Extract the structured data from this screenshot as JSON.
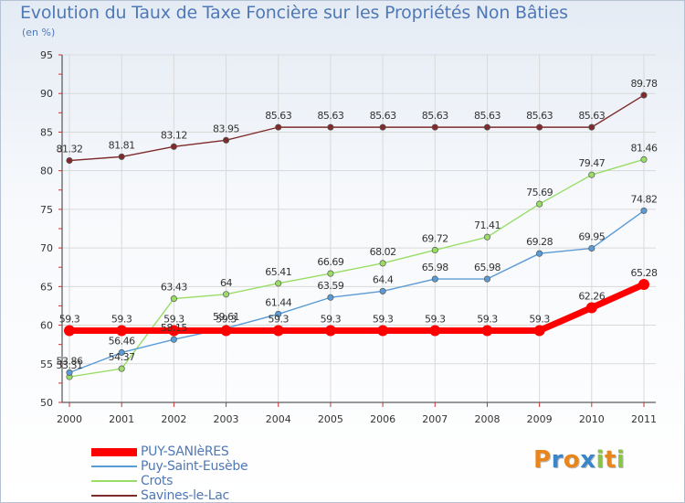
{
  "title": "Evolution du Taux de Taxe Foncière sur les Propriétés Non Bâties",
  "unit_label": "(en %)",
  "logo": {
    "letters": [
      "P",
      "r",
      "o",
      "x",
      "i",
      "t",
      "i"
    ],
    "colors": [
      "#e8861d",
      "#3a86c8",
      "#e8861d",
      "#3a86c8",
      "#8bc34a",
      "#e8861d",
      "#8bc34a"
    ]
  },
  "chart_data": {
    "type": "line",
    "categories": [
      "2000",
      "2001",
      "2002",
      "2003",
      "2004",
      "2005",
      "2006",
      "2007",
      "2008",
      "2009",
      "2010",
      "2011"
    ],
    "ylim": [
      50,
      95
    ],
    "yticks": [
      50,
      55,
      60,
      65,
      70,
      75,
      80,
      85,
      90,
      95
    ],
    "ytick_labels": [
      "50",
      "55",
      "60",
      "65",
      "70",
      "75",
      "80",
      "85",
      "90",
      "95"
    ],
    "grid": true,
    "legend_position": "bottom-left",
    "series": [
      {
        "name": "PUY-SANIèRES",
        "color": "#ff0000",
        "values": [
          59.3,
          59.3,
          59.3,
          59.3,
          59.3,
          59.3,
          59.3,
          59.3,
          59.3,
          59.3,
          62.26,
          65.28
        ],
        "labels": [
          "59.3",
          "59.3",
          "59.3",
          "59.3",
          "59.3",
          "59.3",
          "59.3",
          "59.3",
          "59.3",
          "59.3",
          "62.26",
          "65.28"
        ]
      },
      {
        "name": "Puy-Saint-Eusèbe",
        "color": "#5b9bd5",
        "values": [
          53.86,
          56.46,
          58.15,
          59.61,
          61.44,
          63.59,
          64.4,
          65.98,
          65.98,
          69.28,
          69.95,
          74.82
        ],
        "labels": [
          "53.86",
          "56.46",
          "58.15",
          "59.61",
          "61.44",
          "63.59",
          "64.4",
          "65.98",
          "65.98",
          "69.28",
          "69.95",
          "74.82"
        ]
      },
      {
        "name": "Crots",
        "color": "#99dd66",
        "values": [
          53.31,
          54.37,
          63.43,
          64,
          65.41,
          66.69,
          68.02,
          69.72,
          71.41,
          75.69,
          79.47,
          81.46
        ],
        "labels": [
          "53.31",
          "54.37",
          "63.43",
          "64",
          "65.41",
          "66.69",
          "68.02",
          "69.72",
          "71.41",
          "75.69",
          "79.47",
          "81.46"
        ]
      },
      {
        "name": "Savines-le-Lac",
        "color": "#7f2b2b",
        "values": [
          81.32,
          81.81,
          83.12,
          83.95,
          85.63,
          85.63,
          85.63,
          85.63,
          85.63,
          85.63,
          85.63,
          89.78
        ],
        "labels": [
          "81.32",
          "81.81",
          "83.12",
          "83.95",
          "85.63",
          "85.63",
          "85.63",
          "85.63",
          "85.63",
          "85.63",
          "85.63",
          "89.78"
        ]
      }
    ]
  }
}
